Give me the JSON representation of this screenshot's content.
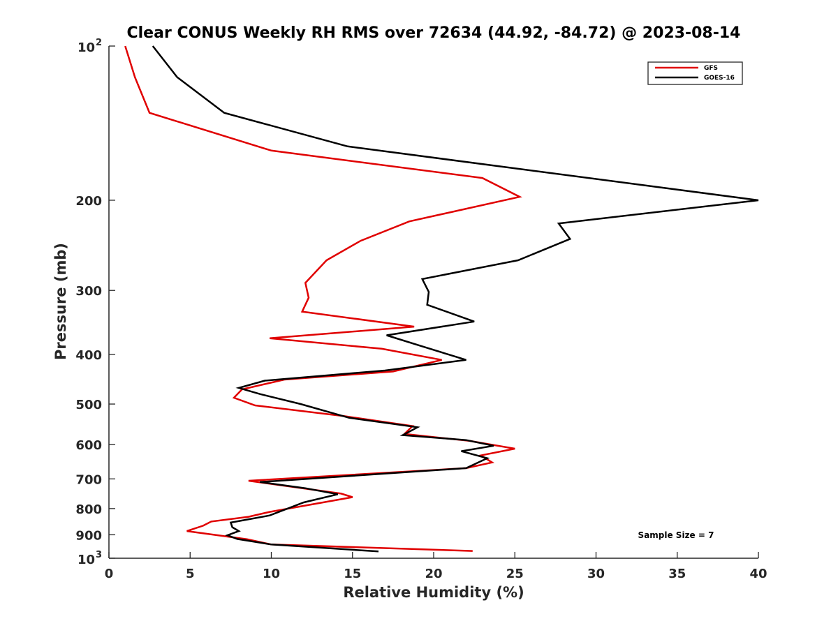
{
  "chart_data": {
    "type": "line",
    "title": "Clear CONUS Weekly RH RMS over 72634 (44.92, -84.72) @ 2023-08-14",
    "xlabel": "Relative Humidity (%)",
    "ylabel": "Pressure (mb)",
    "xlim": [
      0,
      40
    ],
    "ylim": [
      100,
      1000
    ],
    "yscale": "log",
    "y_reversed": true,
    "grid": false,
    "x_ticks": [
      0,
      5,
      10,
      15,
      20,
      25,
      30,
      35,
      40
    ],
    "x_tick_labels": [
      "0",
      "5",
      "10",
      "15",
      "20",
      "25",
      "30",
      "35",
      "40"
    ],
    "y_ticks": [
      200,
      300,
      400,
      500,
      600,
      700,
      800,
      900
    ],
    "y_tick_labels": [
      "200",
      "300",
      "400",
      "500",
      "600",
      "700",
      "800",
      "900"
    ],
    "y_end_ticks": [
      {
        "value": 100,
        "base": "10",
        "exp": "2"
      },
      {
        "value": 1000,
        "base": "10",
        "exp": "3"
      }
    ],
    "legend_position": "top-right",
    "annotation": "Sample Size = 7",
    "series": [
      {
        "name": "GFS",
        "color": "#e00000",
        "points": [
          [
            1.0,
            100
          ],
          [
            1.6,
            115
          ],
          [
            2.5,
            135
          ],
          [
            10.0,
            160
          ],
          [
            23.0,
            181
          ],
          [
            25.3,
            197
          ],
          [
            18.5,
            220
          ],
          [
            15.5,
            240
          ],
          [
            13.4,
            262
          ],
          [
            12.1,
            290
          ],
          [
            12.3,
            310
          ],
          [
            11.9,
            330
          ],
          [
            18.8,
            353
          ],
          [
            9.9,
            372
          ],
          [
            16.8,
            390
          ],
          [
            20.5,
            410
          ],
          [
            17.5,
            432
          ],
          [
            10.8,
            448
          ],
          [
            8.2,
            468
          ],
          [
            7.7,
            486
          ],
          [
            9.0,
            503
          ],
          [
            14.5,
            528
          ],
          [
            18.7,
            552
          ],
          [
            18.2,
            572
          ],
          [
            22.2,
            590
          ],
          [
            25.0,
            611
          ],
          [
            22.9,
            630
          ],
          [
            23.6,
            650
          ],
          [
            22.0,
            667
          ],
          [
            8.6,
            706
          ],
          [
            14.3,
            748
          ],
          [
            15.0,
            760
          ],
          [
            9.9,
            812
          ],
          [
            8.6,
            830
          ],
          [
            6.3,
            848
          ],
          [
            5.8,
            864
          ],
          [
            4.8,
            885
          ],
          [
            8.5,
            918
          ],
          [
            10.0,
            940
          ],
          [
            22.4,
            968
          ]
        ]
      },
      {
        "name": "GOES-16",
        "color": "#000000",
        "points": [
          [
            2.7,
            100
          ],
          [
            4.2,
            115
          ],
          [
            7.1,
            135
          ],
          [
            14.7,
            157
          ],
          [
            40.0,
            200
          ],
          [
            27.7,
            222
          ],
          [
            28.4,
            238
          ],
          [
            25.2,
            262
          ],
          [
            19.3,
            285
          ],
          [
            19.7,
            302
          ],
          [
            19.6,
            320
          ],
          [
            22.5,
            345
          ],
          [
            17.1,
            367
          ],
          [
            19.2,
            385
          ],
          [
            22.0,
            410
          ],
          [
            17.0,
            430
          ],
          [
            9.6,
            450
          ],
          [
            8.0,
            465
          ],
          [
            9.3,
            478
          ],
          [
            11.8,
            500
          ],
          [
            14.8,
            532
          ],
          [
            19.0,
            555
          ],
          [
            18.1,
            575
          ],
          [
            22.0,
            588
          ],
          [
            23.7,
            603
          ],
          [
            21.7,
            618
          ],
          [
            23.3,
            638
          ],
          [
            22.0,
            667
          ],
          [
            9.3,
            710
          ],
          [
            12.1,
            730
          ],
          [
            14.1,
            750
          ],
          [
            12.0,
            778
          ],
          [
            9.9,
            825
          ],
          [
            7.5,
            852
          ],
          [
            7.6,
            870
          ],
          [
            8.0,
            885
          ],
          [
            7.3,
            902
          ],
          [
            7.9,
            917
          ],
          [
            10.0,
            940
          ],
          [
            16.6,
            970
          ]
        ]
      }
    ]
  }
}
